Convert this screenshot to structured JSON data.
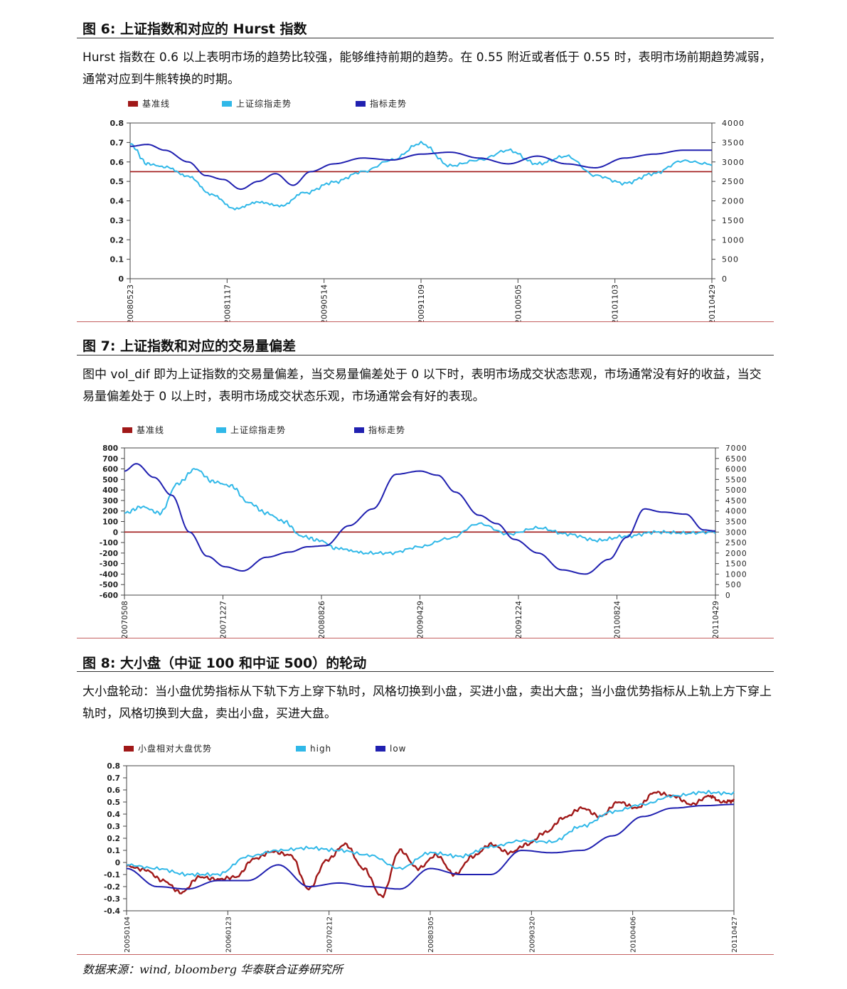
{
  "figures": [
    {
      "heading": "图 6:  上证指数和对应的 Hurst 指数",
      "description": "Hurst 指数在 0.6 以上表明市场的趋势比较强，能够维持前期的趋势。在 0.55 附近或者低于 0.55 时，表明市场前期趋势减弱，通常对应到牛熊转换的时期。"
    },
    {
      "heading": "图 7:  上证指数和对应的交易量偏差",
      "description": "图中 vol_dif 即为上证指数的交易量偏差，当交易量偏差处于 0 以下时，表明市场成交状态悲观，市场通常没有好的收益，当交易量偏差处于 0 以上时，表明市场成交状态乐观，市场通常会有好的表现。"
    },
    {
      "heading": "图 8:  大小盘（中证 100 和中证 500）的轮动",
      "description": "大小盘轮动：当小盘优势指标从下轨下方上穿下轨时，风格切换到小盘，买进小盘，卖出大盘；当小盘优势指标从上轨上方下穿上轨时，风格切换到大盘，卖出小盘，买进大盘。"
    }
  ],
  "source": "数据来源：wind, bloomberg  华泰联合证券研究所",
  "chart_data": [
    {
      "type": "line",
      "legend_position": "top",
      "grid": false,
      "x_ticks": [
        "20080523",
        "20081117",
        "20090514",
        "20091109",
        "20100505",
        "20101103",
        "20110429"
      ],
      "y_left": {
        "ticks": [
          "0.8",
          "0.7",
          "0.6",
          "0.5",
          "0.4",
          "0.3",
          "0.2",
          "0.1",
          "0"
        ],
        "range": [
          0,
          0.8
        ]
      },
      "y_right": {
        "ticks": [
          "4000",
          "3500",
          "3000",
          "2500",
          "2000",
          "1500",
          "1000",
          "500",
          "0"
        ],
        "range": [
          0,
          4000
        ]
      },
      "series": [
        {
          "name": "基准线",
          "axis": "left",
          "color": "#a01818",
          "constant": 0.55
        },
        {
          "name": "上证综指走势",
          "axis": "right",
          "color": "#30b8e8",
          "x": [
            0,
            3,
            6,
            10,
            14,
            18,
            22,
            26,
            30,
            35,
            40,
            45,
            50,
            55,
            60,
            65,
            70,
            75,
            80,
            85,
            90,
            95,
            100
          ],
          "values": [
            3450,
            2950,
            2870,
            2620,
            2150,
            1780,
            1950,
            1850,
            2200,
            2480,
            2750,
            3050,
            3480,
            2900,
            3050,
            3300,
            2950,
            3150,
            2650,
            2450,
            2700,
            3030,
            2940
          ]
        },
        {
          "name": "指标走势",
          "axis": "left",
          "color": "#2020b0",
          "x": [
            0,
            3,
            6,
            10,
            13,
            16,
            19,
            22,
            25,
            28,
            31,
            35,
            40,
            45,
            50,
            55,
            60,
            65,
            70,
            75,
            80,
            85,
            90,
            95,
            100
          ],
          "values": [
            0.68,
            0.69,
            0.66,
            0.6,
            0.53,
            0.51,
            0.46,
            0.5,
            0.54,
            0.48,
            0.55,
            0.59,
            0.62,
            0.61,
            0.64,
            0.65,
            0.62,
            0.59,
            0.63,
            0.59,
            0.57,
            0.62,
            0.64,
            0.66,
            0.66
          ]
        }
      ]
    },
    {
      "type": "line",
      "legend_position": "top",
      "grid": false,
      "x_ticks": [
        "20070508",
        "20071227",
        "20080826",
        "20090429",
        "20091224",
        "20100824",
        "20110429"
      ],
      "y_left": {
        "ticks": [
          "800",
          "700",
          "600",
          "500",
          "400",
          "300",
          "200",
          "100",
          "0",
          "-100",
          "-200",
          "-300",
          "-400",
          "-500",
          "-600"
        ],
        "range": [
          -600,
          800
        ]
      },
      "y_right": {
        "ticks": [
          "7000",
          "6500",
          "6000",
          "5500",
          "5000",
          "4500",
          "4000",
          "3500",
          "3000",
          "2500",
          "2000",
          "1500",
          "1000",
          "500",
          "0"
        ],
        "range": [
          0,
          7000
        ]
      },
      "series": [
        {
          "name": "基准线",
          "axis": "left",
          "color": "#a01818",
          "constant": 0
        },
        {
          "name": "上证综指走势",
          "axis": "right",
          "color": "#30b8e8",
          "x": [
            0,
            3,
            6,
            9,
            12,
            15,
            18,
            21,
            24,
            27,
            30,
            33,
            36,
            40,
            45,
            50,
            55,
            60,
            65,
            70,
            75,
            80,
            85,
            90,
            95,
            100
          ],
          "values": [
            3900,
            4200,
            3900,
            5300,
            6000,
            5400,
            5200,
            4400,
            3900,
            3500,
            2800,
            2600,
            2200,
            2000,
            2000,
            2300,
            2700,
            3400,
            2900,
            3200,
            2900,
            2600,
            2800,
            3000,
            2950,
            3000
          ]
        },
        {
          "name": "指标走势",
          "axis": "left",
          "color": "#2020b0",
          "x": [
            0,
            2,
            5,
            8,
            11,
            14,
            17,
            20,
            24,
            28,
            31,
            34,
            38,
            42,
            46,
            50,
            53,
            56,
            60,
            63,
            66,
            70,
            74,
            78,
            82,
            85,
            88,
            91,
            95,
            98,
            100
          ],
          "values": [
            580,
            650,
            520,
            350,
            0,
            -230,
            -330,
            -370,
            -240,
            -190,
            -140,
            -130,
            60,
            220,
            550,
            580,
            540,
            380,
            160,
            80,
            -70,
            -200,
            -360,
            -400,
            -260,
            -50,
            220,
            190,
            170,
            20,
            10
          ]
        }
      ]
    },
    {
      "type": "line",
      "legend_position": "top",
      "grid": false,
      "x_ticks": [
        "20050104",
        "20060123",
        "20070212",
        "20080305",
        "20090320",
        "20100406",
        "20110427"
      ],
      "y_left": {
        "ticks": [
          "0.8",
          "0.7",
          "0.6",
          "0.5",
          "0.4",
          "0.3",
          "0.2",
          "0.1",
          "0",
          "-0.1",
          "-0.2",
          "-0.3",
          "-0.4"
        ],
        "range": [
          -0.4,
          0.8
        ]
      },
      "series": [
        {
          "name": "小盘相对大盘优势",
          "axis": "left",
          "color": "#a01818",
          "x": [
            0,
            3,
            6,
            9,
            12,
            15,
            18,
            21,
            24,
            27,
            30,
            33,
            36,
            39,
            42,
            45,
            48,
            51,
            54,
            57,
            60,
            63,
            66,
            69,
            72,
            75,
            78,
            81,
            84,
            87,
            90,
            93,
            96,
            98,
            100
          ],
          "values": [
            -0.03,
            -0.06,
            -0.15,
            -0.25,
            -0.12,
            -0.14,
            -0.12,
            0.03,
            0.09,
            0.06,
            -0.22,
            0.02,
            0.15,
            -0.05,
            -0.28,
            0.1,
            -0.05,
            0.06,
            -0.1,
            0.05,
            0.15,
            0.08,
            0.15,
            0.25,
            0.37,
            0.45,
            0.38,
            0.5,
            0.45,
            0.58,
            0.55,
            0.48,
            0.55,
            0.5,
            0.51
          ]
        },
        {
          "name": "high",
          "axis": "left",
          "color": "#30b8e8",
          "x": [
            0,
            5,
            10,
            15,
            20,
            25,
            30,
            35,
            40,
            45,
            50,
            55,
            60,
            65,
            70,
            75,
            80,
            85,
            90,
            95,
            100
          ],
          "values": [
            -0.02,
            -0.05,
            -0.1,
            -0.1,
            0.05,
            0.1,
            0.12,
            0.1,
            0.06,
            -0.05,
            0.08,
            0.05,
            0.13,
            0.18,
            0.17,
            0.3,
            0.42,
            0.48,
            0.55,
            0.58,
            0.57
          ]
        },
        {
          "name": "low",
          "axis": "left",
          "color": "#2020b0",
          "x": [
            0,
            5,
            10,
            15,
            20,
            25,
            30,
            35,
            40,
            45,
            50,
            55,
            60,
            65,
            70,
            75,
            80,
            85,
            90,
            95,
            100
          ],
          "values": [
            -0.05,
            -0.2,
            -0.22,
            -0.15,
            -0.15,
            -0.02,
            -0.2,
            -0.17,
            -0.2,
            -0.22,
            -0.05,
            -0.1,
            -0.1,
            0.1,
            0.08,
            0.1,
            0.22,
            0.38,
            0.45,
            0.47,
            0.48
          ]
        }
      ]
    }
  ]
}
